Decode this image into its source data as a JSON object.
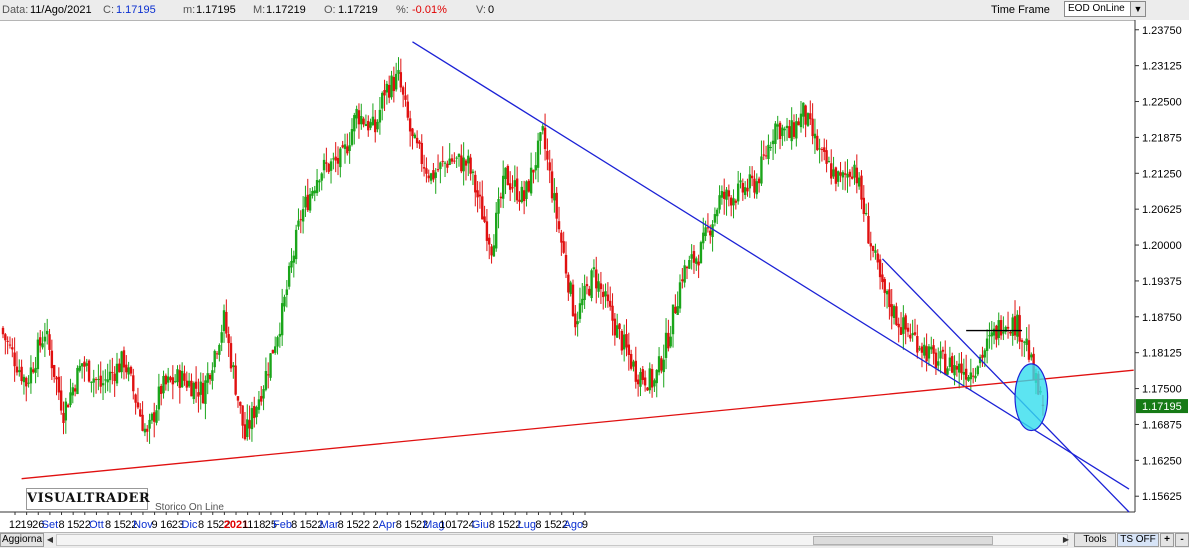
{
  "header": {
    "date_label": "Data:",
    "date_value": "11/Ago/2021",
    "close_label": "C:",
    "close_value": "1.17195",
    "min_label": "m:",
    "min_value": "1.17195",
    "max_label": "M:",
    "max_value": "1.17219",
    "open_label": "O:",
    "open_value": "1.17219",
    "pct_label": "%:",
    "pct_value": "-0.01%",
    "vol_label": "V:",
    "vol_value": "0",
    "time_frame_label": "Time Frame",
    "time_frame_value": "EOD OnLine",
    "dropdown_icon": "chevron-down-icon"
  },
  "logo": {
    "text": "VISUALTRADER",
    "subtitle": "Storico On Line"
  },
  "bottom": {
    "refresh_button": "Aggiorna",
    "tools_button": "Tools",
    "ts_button": "TS OFF",
    "plus_button": "+",
    "minus_button": "-"
  },
  "chart_data": {
    "type": "candlestick",
    "ylim": [
      1.1535,
      1.2392
    ],
    "y_ticks": [
      "1.23750",
      "1.23125",
      "1.22500",
      "1.21875",
      "1.21250",
      "1.20625",
      "1.20000",
      "1.19375",
      "1.18750",
      "1.18125",
      "1.17500",
      "1.16875",
      "1.16250",
      "1.15625"
    ],
    "last_price": "1.17195",
    "colors": {
      "up": "#1aa51a",
      "down": "#e01010",
      "trendline_blue": "#1c22d6",
      "trendline_red": "#e01010",
      "highlight": "#33ddee",
      "price_tag": "#167a16"
    },
    "x_labels": [
      {
        "text": "12",
        "color": "#000"
      },
      {
        "text": "19",
        "color": "#000"
      },
      {
        "text": "26",
        "color": "#000"
      },
      {
        "text": "Set",
        "color": "#0a2fd0"
      },
      {
        "text": "8",
        "color": "#000"
      },
      {
        "text": "15",
        "color": "#000"
      },
      {
        "text": "22",
        "color": "#000"
      },
      {
        "text": "Ott",
        "color": "#0a2fd0"
      },
      {
        "text": "8",
        "color": "#000"
      },
      {
        "text": "15",
        "color": "#000"
      },
      {
        "text": "22",
        "color": "#000"
      },
      {
        "text": "Nov",
        "color": "#0a2fd0"
      },
      {
        "text": "9",
        "color": "#000"
      },
      {
        "text": "16",
        "color": "#000"
      },
      {
        "text": "23",
        "color": "#000"
      },
      {
        "text": "Dic",
        "color": "#0a2fd0"
      },
      {
        "text": "8",
        "color": "#000"
      },
      {
        "text": "15",
        "color": "#000"
      },
      {
        "text": "22",
        "color": "#000"
      },
      {
        "text": "2021",
        "color": "#e00000"
      },
      {
        "text": "11",
        "color": "#000"
      },
      {
        "text": "18",
        "color": "#000"
      },
      {
        "text": "25",
        "color": "#000"
      },
      {
        "text": "Feb",
        "color": "#0a2fd0"
      },
      {
        "text": "8",
        "color": "#000"
      },
      {
        "text": "15",
        "color": "#000"
      },
      {
        "text": "22",
        "color": "#000"
      },
      {
        "text": "Mar",
        "color": "#0a2fd0"
      },
      {
        "text": "8",
        "color": "#000"
      },
      {
        "text": "15",
        "color": "#000"
      },
      {
        "text": "22",
        "color": "#000"
      },
      {
        "text": "2",
        "color": "#000"
      },
      {
        "text": "Apr",
        "color": "#0a2fd0"
      },
      {
        "text": "8",
        "color": "#000"
      },
      {
        "text": "15",
        "color": "#000"
      },
      {
        "text": "22",
        "color": "#000"
      },
      {
        "text": "Mag",
        "color": "#0a2fd0"
      },
      {
        "text": "10",
        "color": "#000"
      },
      {
        "text": "17",
        "color": "#000"
      },
      {
        "text": "24",
        "color": "#000"
      },
      {
        "text": "Giu",
        "color": "#0a2fd0"
      },
      {
        "text": "8",
        "color": "#000"
      },
      {
        "text": "15",
        "color": "#000"
      },
      {
        "text": "22",
        "color": "#000"
      },
      {
        "text": "Lug",
        "color": "#0a2fd0"
      },
      {
        "text": "8",
        "color": "#000"
      },
      {
        "text": "15",
        "color": "#000"
      },
      {
        "text": "22",
        "color": "#000"
      },
      {
        "text": "Ago",
        "color": "#0a2fd0"
      },
      {
        "text": "9",
        "color": "#000"
      }
    ],
    "candles_per_label": 5,
    "keypoints": [
      [
        0,
        1.1845
      ],
      [
        10,
        1.176
      ],
      [
        18,
        1.185
      ],
      [
        26,
        1.171
      ],
      [
        34,
        1.1795
      ],
      [
        42,
        1.1755
      ],
      [
        52,
        1.18
      ],
      [
        62,
        1.1665
      ],
      [
        68,
        1.175
      ],
      [
        76,
        1.177
      ],
      [
        86,
        1.1745
      ],
      [
        95,
        1.187
      ],
      [
        104,
        1.1665
      ],
      [
        112,
        1.176
      ],
      [
        120,
        1.188
      ],
      [
        128,
        1.205
      ],
      [
        136,
        1.213
      ],
      [
        146,
        1.215
      ],
      [
        152,
        1.223
      ],
      [
        160,
        1.22
      ],
      [
        164,
        1.227
      ],
      [
        170,
        1.229
      ],
      [
        176,
        1.218
      ],
      [
        184,
        1.212
      ],
      [
        192,
        1.215
      ],
      [
        200,
        1.214
      ],
      [
        210,
        1.2
      ],
      [
        216,
        1.212
      ],
      [
        224,
        1.208
      ],
      [
        232,
        1.219
      ],
      [
        238,
        1.205
      ],
      [
        246,
        1.187
      ],
      [
        254,
        1.195
      ],
      [
        264,
        1.185
      ],
      [
        272,
        1.178
      ],
      [
        280,
        1.176
      ],
      [
        286,
        1.184
      ],
      [
        292,
        1.195
      ],
      [
        300,
        1.199
      ],
      [
        308,
        1.208
      ],
      [
        316,
        1.209
      ],
      [
        324,
        1.211
      ],
      [
        332,
        1.221
      ],
      [
        338,
        1.219
      ],
      [
        344,
        1.223
      ],
      [
        352,
        1.215
      ],
      [
        360,
        1.211
      ],
      [
        366,
        1.214
      ],
      [
        372,
        1.202
      ],
      [
        378,
        1.192
      ],
      [
        386,
        1.186
      ],
      [
        394,
        1.183
      ],
      [
        400,
        1.18
      ],
      [
        408,
        1.179
      ],
      [
        416,
        1.178
      ],
      [
        424,
        1.183
      ],
      [
        430,
        1.187
      ],
      [
        436,
        1.186
      ],
      [
        440,
        1.183
      ],
      [
        443,
        1.177
      ],
      [
        446,
        1.173
      ],
      [
        447,
        1.17195
      ]
    ],
    "horizontal_level": {
      "price": 1.1851,
      "from_index": 414,
      "to_index": 438
    },
    "trendlines": [
      {
        "name": "",
        "color": "#1c22d6",
        "points": [
          [
            176,
            1.2354
          ],
          [
            484,
            1.1575
          ]
        ]
      },
      {
        "name": "",
        "color": "#e01010",
        "points": [
          [
            8,
            1.1593
          ],
          [
            486,
            1.1782
          ]
        ]
      },
      {
        "name": "",
        "color": "#1c22d6",
        "points": [
          [
            378,
            1.1976
          ],
          [
            484,
            1.1535
          ]
        ]
      }
    ],
    "highlight_ellipse": {
      "center_index": 442,
      "price": 1.1735,
      "rx_candles": 7,
      "ry_price": 0.0058
    }
  }
}
